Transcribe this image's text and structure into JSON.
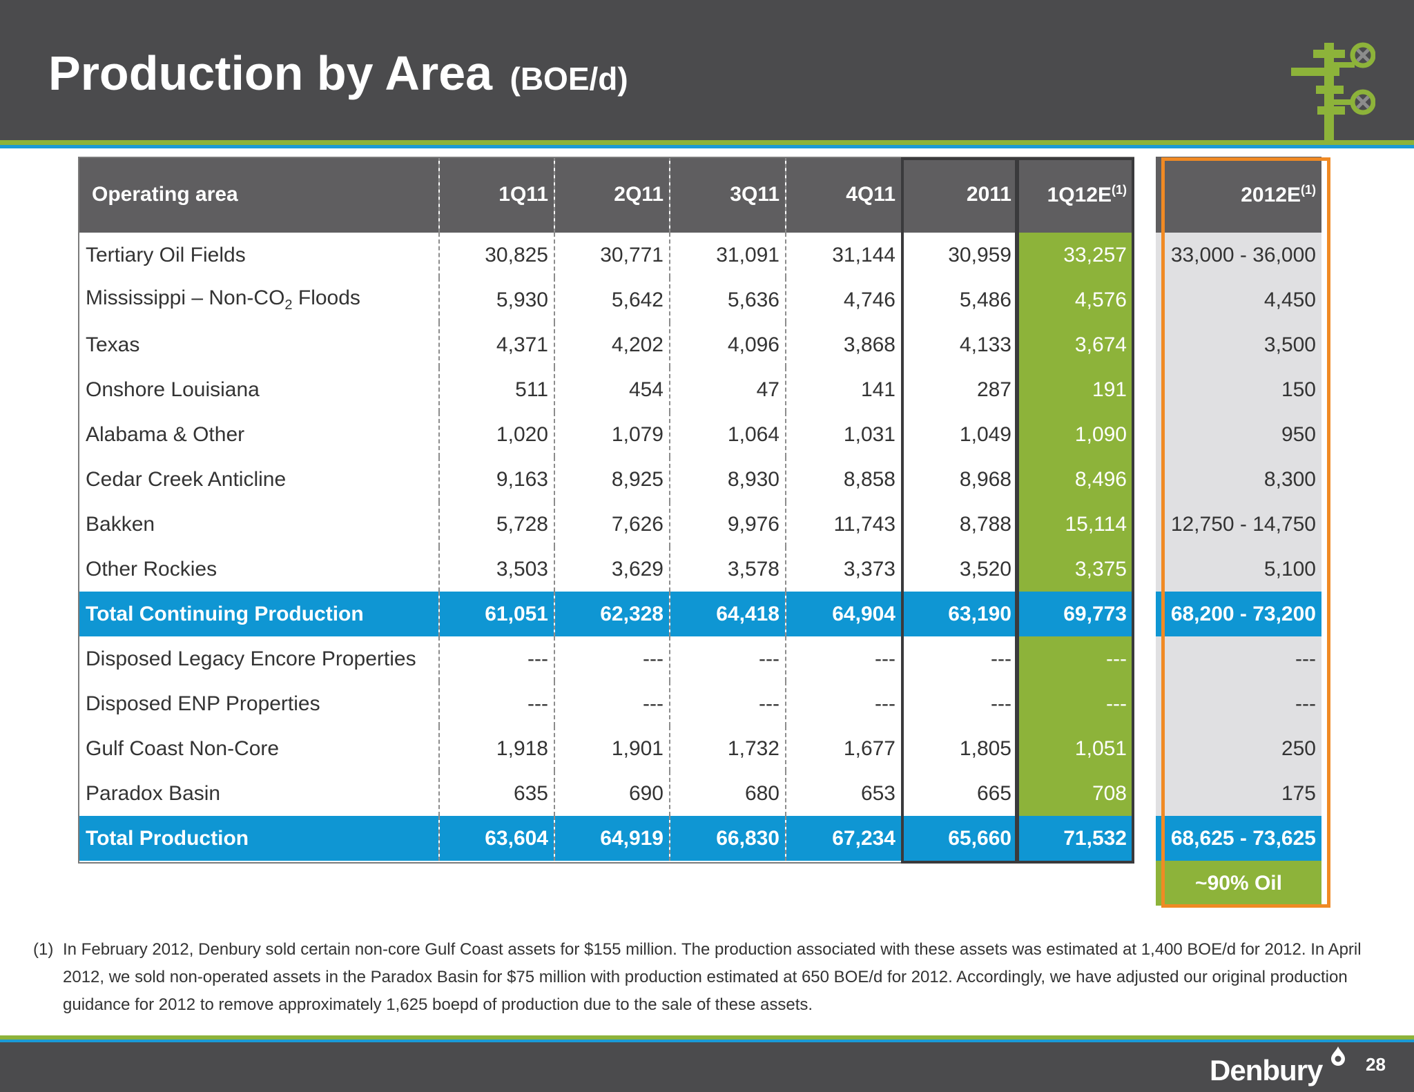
{
  "header": {
    "title": "Production by Area",
    "units": "(BOE/d)",
    "logo_icon": "wellhead-valve-icon"
  },
  "colors": {
    "header_bg": "#4b4b4d",
    "accent_green": "#8db33a",
    "accent_blue": "#1a9ad6",
    "total_row": "#0f96d3",
    "estimate_border": "#f08a24"
  },
  "table": {
    "columns": [
      {
        "label": "Operating area",
        "sup": ""
      },
      {
        "label": "1Q11",
        "sup": ""
      },
      {
        "label": "2Q11",
        "sup": ""
      },
      {
        "label": "3Q11",
        "sup": ""
      },
      {
        "label": "4Q11",
        "sup": ""
      },
      {
        "label": "2011",
        "sup": ""
      },
      {
        "label": "1Q12E",
        "sup": "(1)"
      },
      {
        "label": "2012E",
        "sup": "(1)"
      }
    ],
    "rows": [
      {
        "area": "Tertiary Oil Fields",
        "sub": "",
        "area_suffix": "",
        "values": [
          "30,825",
          "30,771",
          "31,091",
          "31,144",
          "30,959",
          "33,257",
          "33,000 - 36,000"
        ]
      },
      {
        "area": "Mississippi – Non-CO",
        "sub": "2",
        "area_suffix": " Floods",
        "values": [
          "5,930",
          "5,642",
          "5,636",
          "4,746",
          "5,486",
          "4,576",
          "4,450"
        ]
      },
      {
        "area": "Texas",
        "sub": "",
        "area_suffix": "",
        "values": [
          "4,371",
          "4,202",
          "4,096",
          "3,868",
          "4,133",
          "3,674",
          "3,500"
        ]
      },
      {
        "area": "Onshore Louisiana",
        "sub": "",
        "area_suffix": "",
        "values": [
          "511",
          "454",
          "47",
          "141",
          "287",
          "191",
          "150"
        ]
      },
      {
        "area": "Alabama & Other",
        "sub": "",
        "area_suffix": "",
        "values": [
          "1,020",
          "1,079",
          "1,064",
          "1,031",
          "1,049",
          "1,090",
          "950"
        ]
      },
      {
        "area": "Cedar Creek Anticline",
        "sub": "",
        "area_suffix": "",
        "values": [
          "9,163",
          "8,925",
          "8,930",
          "8,858",
          "8,968",
          "8,496",
          "8,300"
        ]
      },
      {
        "area": "Bakken",
        "sub": "",
        "area_suffix": "",
        "values": [
          "5,728",
          "7,626",
          "9,976",
          "11,743",
          "8,788",
          "15,114",
          "12,750 - 14,750"
        ]
      },
      {
        "area": "Other Rockies",
        "sub": "",
        "area_suffix": "",
        "values": [
          "3,503",
          "3,629",
          "3,578",
          "3,373",
          "3,520",
          "3,375",
          "5,100"
        ]
      },
      {
        "area": "Total Continuing Production",
        "sub": "",
        "area_suffix": "",
        "total": true,
        "values": [
          "61,051",
          "62,328",
          "64,418",
          "64,904",
          "63,190",
          "69,773",
          "68,200 - 73,200"
        ]
      },
      {
        "area": "Disposed Legacy Encore Properties",
        "sub": "",
        "area_suffix": "",
        "values": [
          "---",
          "---",
          "---",
          "---",
          "---",
          "---",
          "---"
        ]
      },
      {
        "area": "Disposed ENP Properties",
        "sub": "",
        "area_suffix": "",
        "values": [
          "---",
          "---",
          "---",
          "---",
          "---",
          "---",
          "---"
        ]
      },
      {
        "area": "Gulf Coast Non-Core",
        "sub": "",
        "area_suffix": "",
        "values": [
          "1,918",
          "1,901",
          "1,732",
          "1,677",
          "1,805",
          "1,051",
          "250"
        ]
      },
      {
        "area": "Paradox Basin",
        "sub": "",
        "area_suffix": "",
        "values": [
          "635",
          "690",
          "680",
          "653",
          "665",
          "708",
          "175"
        ]
      },
      {
        "area": "Total Production",
        "sub": "",
        "area_suffix": "",
        "total": true,
        "values": [
          "63,604",
          "64,919",
          "66,830",
          "67,234",
          "65,660",
          "71,532",
          "68,625 - 73,625"
        ]
      }
    ],
    "oil_note": "~90% Oil"
  },
  "footnote": {
    "number": "(1)",
    "text": "In February 2012, Denbury sold certain non-core Gulf Coast assets for $155 million.  The production associated with these assets was estimated at 1,400 BOE/d for 2012. In April 2012, we sold non-operated assets in the Paradox Basin for $75 million with production estimated at 650 BOE/d for 2012. Accordingly, we have adjusted our original production guidance for 2012 to remove approximately 1,625 boepd of production due to the sale of these assets."
  },
  "footer": {
    "brand": "Denbury",
    "brand_icon": "flame-drop-icon",
    "page_number": "28"
  }
}
